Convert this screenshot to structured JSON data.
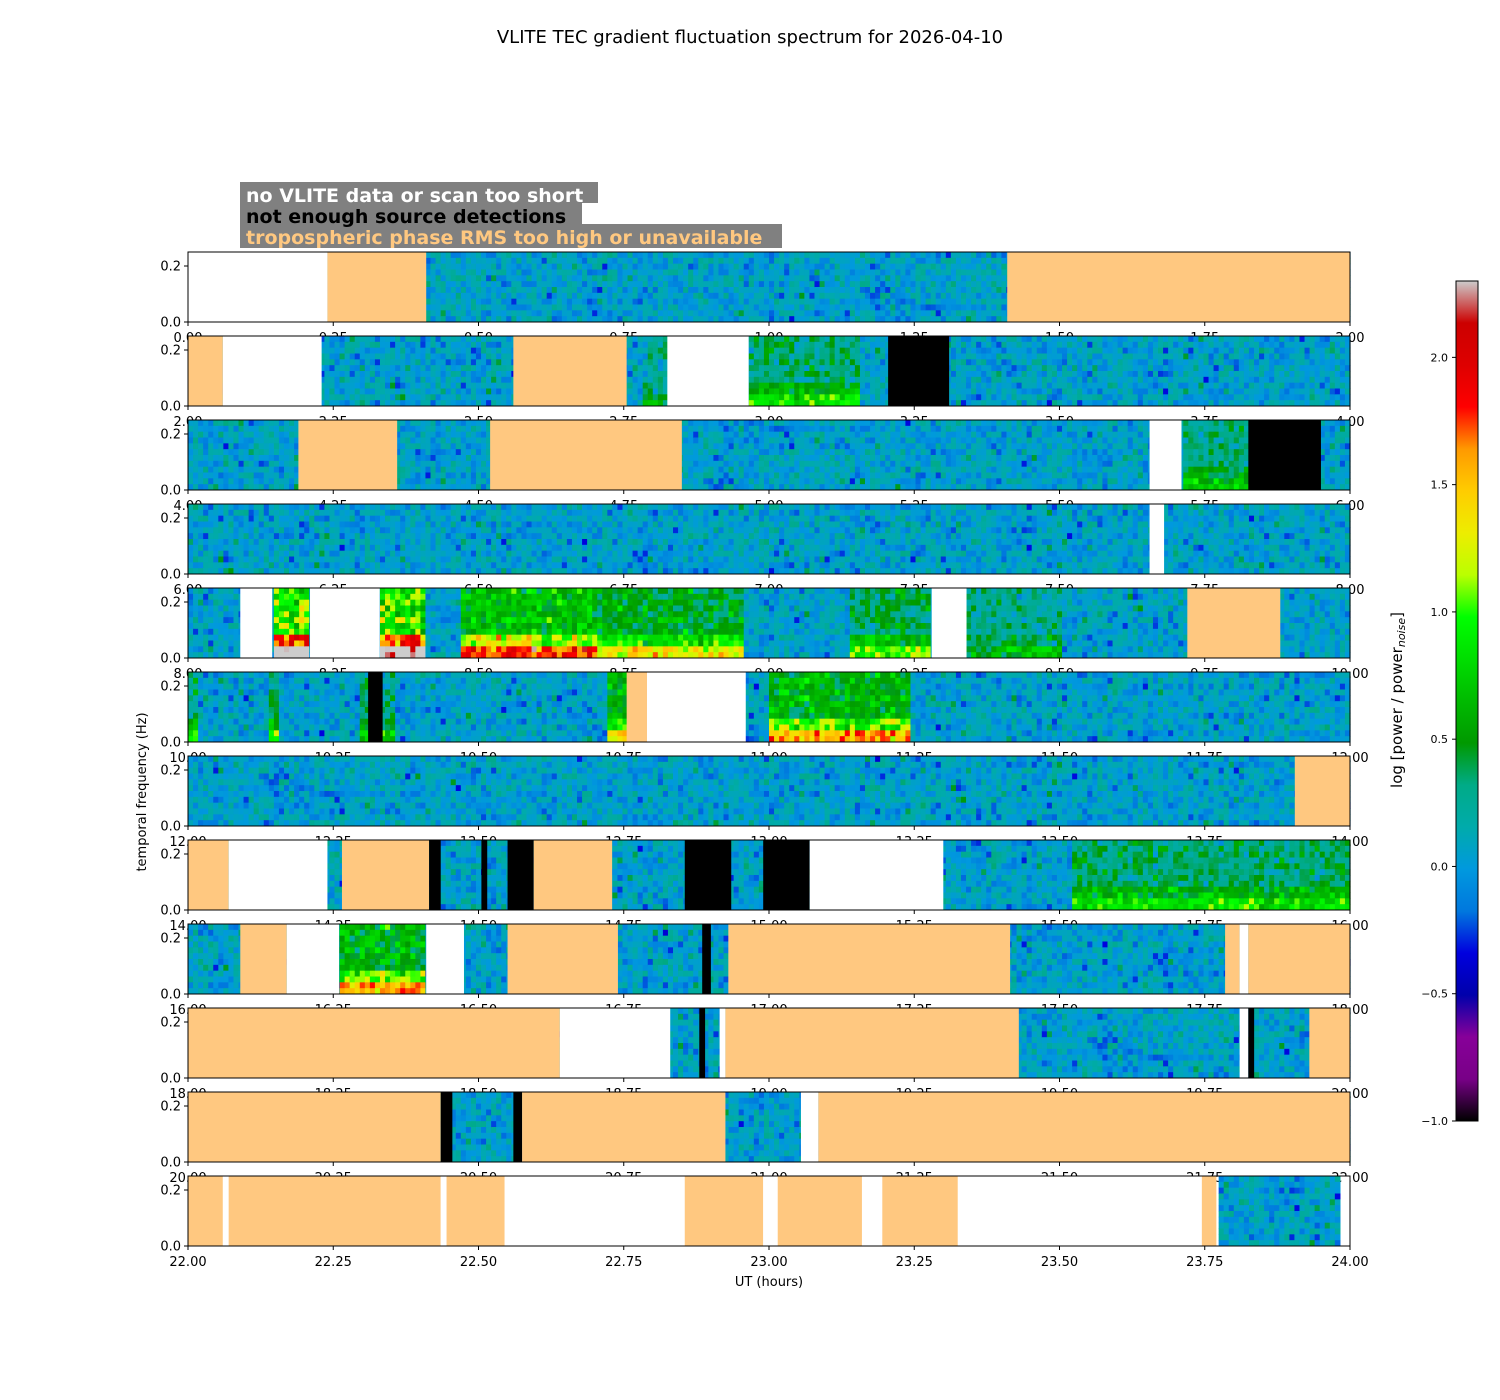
{
  "chart_data": {
    "type": "heatmap",
    "title": "VLITE TEC gradient fluctuation spectrum for 2026-04-10",
    "xlabel": "UT (hours)",
    "ylabel": "temporal frequency (Hz)",
    "colorbar_label": "log [power / power",
    "colorbar_label_sub": "noise",
    "colorbar_label_end": "]",
    "colorbar_range": [
      -1.0,
      2.3
    ],
    "colorbar_ticks": [
      "-1.0",
      "-0.5",
      "0.0",
      "0.5",
      "1.0",
      "1.5",
      "2.0"
    ],
    "colormap": "nipy_spectral",
    "y_range": [
      0,
      0.25
    ],
    "y_ticks": [
      "0.0",
      "0.2"
    ],
    "legend": [
      {
        "text": "no VLITE data or scan too short",
        "color": "#ffffff"
      },
      {
        "text": "not enough source detections",
        "color": "#000000"
      },
      {
        "text": "tropospheric phase RMS too high or unavailable",
        "color": "#ffc880"
      }
    ],
    "legend_background": "#808080",
    "flag_colors": {
      "white": "#ffffff",
      "black": "#000000",
      "orange": "#ffc880"
    },
    "panels": [
      {
        "range": [
          0,
          2
        ],
        "ticks": [
          "0.00",
          "0.25",
          "0.50",
          "0.75",
          "1.00",
          "1.25",
          "1.50",
          "1.75",
          "2.00"
        ],
        "flags": [
          [
            0,
            0.24,
            "white"
          ],
          [
            0.24,
            0.41,
            "orange"
          ],
          [
            1.41,
            2.0,
            "orange"
          ]
        ],
        "hot": []
      },
      {
        "range": [
          2,
          4
        ],
        "ticks": [
          "2.00",
          "2.25",
          "2.50",
          "2.75",
          "3.00",
          "3.25",
          "3.50",
          "3.75",
          "4.00"
        ],
        "flags": [
          [
            2.0,
            2.06,
            "orange"
          ],
          [
            2.06,
            2.23,
            "white"
          ],
          [
            2.56,
            2.755,
            "orange"
          ],
          [
            2.825,
            2.965,
            "white"
          ],
          [
            3.205,
            3.31,
            "black"
          ]
        ],
        "hot": [
          [
            2.78,
            2.825,
            0.15
          ],
          [
            2.965,
            3.16,
            0.3
          ]
        ]
      },
      {
        "range": [
          4,
          6
        ],
        "ticks": [
          "4.00",
          "4.25",
          "4.50",
          "4.75",
          "5.00",
          "5.25",
          "5.50",
          "5.75",
          "6.00"
        ],
        "flags": [
          [
            4.19,
            4.36,
            "orange"
          ],
          [
            4.52,
            4.85,
            "orange"
          ],
          [
            5.655,
            5.71,
            "white"
          ],
          [
            5.825,
            5.95,
            "black"
          ]
        ],
        "hot": [
          [
            5.71,
            5.825,
            0.25
          ]
        ]
      },
      {
        "range": [
          6,
          8
        ],
        "ticks": [
          "6.00",
          "6.25",
          "6.50",
          "6.75",
          "7.00",
          "7.25",
          "7.50",
          "7.75",
          "8.00"
        ],
        "flags": [
          [
            7.655,
            7.68,
            "white"
          ]
        ],
        "hot": []
      },
      {
        "range": [
          8,
          10
        ],
        "ticks": [
          "8.00",
          "8.25",
          "8.50",
          "8.75",
          "9.00",
          "9.25",
          "9.50",
          "9.75",
          "10.00"
        ],
        "flags": [
          [
            8.09,
            8.145,
            "white"
          ],
          [
            8.21,
            8.33,
            "white"
          ],
          [
            9.28,
            9.34,
            "white"
          ],
          [
            9.72,
            9.88,
            "orange"
          ]
        ],
        "hot": [
          [
            8.145,
            8.21,
            1.0
          ],
          [
            8.33,
            8.41,
            0.9
          ],
          [
            8.47,
            8.7,
            0.65
          ],
          [
            8.7,
            8.96,
            0.45
          ],
          [
            9.14,
            9.28,
            0.35
          ],
          [
            9.34,
            9.5,
            0.2
          ]
        ]
      },
      {
        "range": [
          10,
          12
        ],
        "ticks": [
          "10.00",
          "10.25",
          "10.50",
          "10.75",
          "11.00",
          "11.25",
          "11.50",
          "11.75",
          "12.00"
        ],
        "flags": [
          [
            10.31,
            10.335,
            "black"
          ],
          [
            10.755,
            10.79,
            "orange"
          ],
          [
            10.79,
            10.96,
            "white"
          ]
        ],
        "hot": [
          [
            10.0,
            10.02,
            0.3
          ],
          [
            10.14,
            10.16,
            0.35
          ],
          [
            10.295,
            10.36,
            0.25
          ],
          [
            10.725,
            10.755,
            0.5
          ],
          [
            11.0,
            11.24,
            0.55
          ]
        ]
      },
      {
        "range": [
          12,
          14
        ],
        "ticks": [
          "12.00",
          "12.25",
          "12.50",
          "12.75",
          "13.00",
          "13.25",
          "13.50",
          "13.75",
          "14.00"
        ],
        "flags": [
          [
            13.905,
            14.0,
            "orange"
          ]
        ],
        "hot": []
      },
      {
        "range": [
          14,
          16
        ],
        "ticks": [
          "14.00",
          "14.25",
          "14.50",
          "14.75",
          "15.00",
          "15.25",
          "15.50",
          "15.75",
          "16.00"
        ],
        "flags": [
          [
            14.0,
            14.07,
            "orange"
          ],
          [
            14.07,
            14.24,
            "white"
          ],
          [
            14.265,
            14.415,
            "orange"
          ],
          [
            14.415,
            14.435,
            "black"
          ],
          [
            14.505,
            14.515,
            "black"
          ],
          [
            14.55,
            14.595,
            "black"
          ],
          [
            14.595,
            14.73,
            "orange"
          ],
          [
            14.855,
            14.935,
            "black"
          ],
          [
            14.99,
            15.07,
            "black"
          ],
          [
            15.07,
            15.3,
            "white"
          ]
        ],
        "hot": [
          [
            15.52,
            16.0,
            0.3
          ]
        ]
      },
      {
        "range": [
          16,
          18
        ],
        "ticks": [
          "16.00",
          "16.25",
          "16.50",
          "16.75",
          "17.00",
          "17.25",
          "17.50",
          "17.75",
          "18.00"
        ],
        "flags": [
          [
            16.09,
            16.17,
            "orange"
          ],
          [
            16.17,
            16.26,
            "white"
          ],
          [
            16.41,
            16.475,
            "white"
          ],
          [
            16.55,
            16.74,
            "orange"
          ],
          [
            16.885,
            16.9,
            "black"
          ],
          [
            16.93,
            17.415,
            "orange"
          ],
          [
            17.785,
            17.81,
            "orange"
          ],
          [
            17.81,
            17.825,
            "white"
          ],
          [
            17.825,
            18.0,
            "orange"
          ]
        ],
        "hot": [
          [
            16.26,
            16.41,
            0.55
          ]
        ]
      },
      {
        "range": [
          18,
          20
        ],
        "ticks": [
          "18.00",
          "18.25",
          "18.50",
          "18.75",
          "19.00",
          "19.25",
          "19.50",
          "19.75",
          "20.00"
        ],
        "flags": [
          [
            18.0,
            18.64,
            "orange"
          ],
          [
            18.64,
            18.83,
            "white"
          ],
          [
            18.88,
            18.89,
            "black"
          ],
          [
            18.915,
            18.925,
            "white"
          ],
          [
            18.925,
            19.43,
            "orange"
          ],
          [
            19.81,
            19.825,
            "white"
          ],
          [
            19.825,
            19.835,
            "black"
          ],
          [
            19.93,
            20.0,
            "orange"
          ]
        ],
        "hot": []
      },
      {
        "range": [
          20,
          22
        ],
        "ticks": [
          "20.00",
          "20.25",
          "20.50",
          "20.75",
          "21.00",
          "21.25",
          "21.50",
          "21.75",
          "22.00"
        ],
        "flags": [
          [
            20.0,
            20.435,
            "orange"
          ],
          [
            20.435,
            20.455,
            "black"
          ],
          [
            20.56,
            20.575,
            "black"
          ],
          [
            20.575,
            20.925,
            "orange"
          ],
          [
            21.055,
            21.085,
            "white"
          ],
          [
            21.085,
            22.0,
            "orange"
          ]
        ],
        "hot": []
      },
      {
        "range": [
          22,
          24
        ],
        "ticks": [
          "22.00",
          "22.25",
          "22.50",
          "22.75",
          "23.00",
          "23.25",
          "23.50",
          "23.75",
          "24.00"
        ],
        "flags": [
          [
            22.0,
            22.06,
            "orange"
          ],
          [
            22.06,
            22.07,
            "white"
          ],
          [
            22.07,
            22.435,
            "orange"
          ],
          [
            22.435,
            22.445,
            "white"
          ],
          [
            22.445,
            22.545,
            "orange"
          ],
          [
            22.545,
            22.855,
            "white"
          ],
          [
            22.855,
            22.99,
            "orange"
          ],
          [
            22.99,
            23.015,
            "white"
          ],
          [
            23.015,
            23.16,
            "orange"
          ],
          [
            23.16,
            23.195,
            "white"
          ],
          [
            23.195,
            23.325,
            "orange"
          ],
          [
            23.325,
            23.745,
            "white"
          ],
          [
            23.745,
            23.77,
            "orange"
          ],
          [
            23.985,
            24.0,
            "white"
          ]
        ],
        "data_span": [
          23.77,
          23.985
        ],
        "hot": []
      }
    ]
  }
}
